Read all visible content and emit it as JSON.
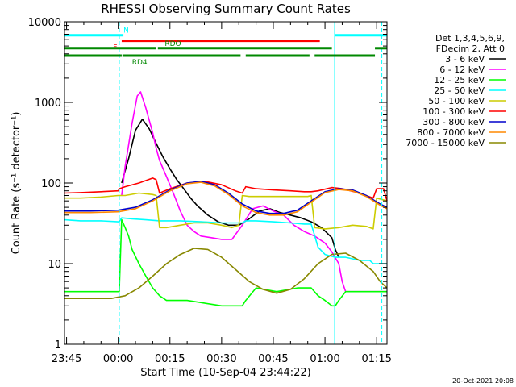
{
  "chart_data": {
    "type": "line",
    "title": "RHESSI Observing Summary Count Rates",
    "xlabel": "Start Time (10-Sep-04 23:44:22)",
    "ylabel": "Count Rate (s⁻¹ detector⁻¹)",
    "yscale": "log",
    "ylim": [
      1,
      10000
    ],
    "xlim_minutes": [
      -15.6,
      78.0
    ],
    "x_ticks": [
      {
        "m": -15,
        "label": "23:45"
      },
      {
        "m": 0,
        "label": "00:00"
      },
      {
        "m": 15,
        "label": "00:15"
      },
      {
        "m": 30,
        "label": "00:30"
      },
      {
        "m": 45,
        "label": "00:45"
      },
      {
        "m": 60,
        "label": "01:00"
      },
      {
        "m": 75,
        "label": "01:15"
      }
    ],
    "y_ticks": [
      {
        "v": 1,
        "label": "1"
      },
      {
        "v": 10,
        "label": "10"
      },
      {
        "v": 100,
        "label": "100"
      },
      {
        "v": 1000,
        "label": "1000"
      },
      {
        "v": 10000,
        "label": "10000"
      }
    ],
    "legend_header": [
      "Det 1,3,4,5,6,9,",
      "FDecim 2, Att 0"
    ],
    "series": [
      {
        "name": "3 - 6 keV",
        "color": "#000000",
        "x": [
          -15.6,
          -11,
          -5,
          0.3,
          1,
          3,
          5,
          7,
          9,
          11,
          13,
          15,
          17,
          19,
          21,
          23,
          26,
          29,
          32,
          35,
          38,
          41,
          44,
          47,
          50,
          53,
          56,
          59,
          62,
          63,
          64
        ],
        "y": [
          null,
          null,
          null,
          null,
          100,
          200,
          450,
          620,
          470,
          310,
          210,
          150,
          110,
          85,
          65,
          52,
          40,
          33,
          30,
          30,
          36,
          45,
          48,
          43,
          40,
          37,
          33,
          28,
          21,
          15,
          12
        ]
      },
      {
        "name": "6 - 12 keV",
        "color": "#ff00ff",
        "x": [
          -15.6,
          -11,
          -5,
          0.3,
          1,
          2,
          4,
          5.5,
          6.5,
          8,
          10,
          11,
          12,
          14,
          16,
          18,
          20,
          22,
          24,
          27,
          30,
          33,
          36,
          39,
          42,
          45,
          48,
          51,
          54,
          57,
          60,
          62,
          64,
          65,
          66,
          78
        ],
        "y": [
          null,
          null,
          null,
          null,
          70,
          160,
          550,
          1200,
          1350,
          850,
          420,
          270,
          190,
          120,
          75,
          45,
          30,
          25,
          22,
          21,
          20,
          20,
          30,
          48,
          52,
          45,
          40,
          30,
          25,
          22,
          18,
          14,
          10,
          6,
          4.5,
          4.5
        ]
      },
      {
        "name": "12 - 25 keV",
        "color": "#00ff00",
        "x": [
          -15.6,
          -11,
          -5,
          -1,
          0.3,
          1,
          2,
          3,
          4,
          6,
          8,
          10,
          12,
          14,
          20,
          30,
          35,
          36,
          37,
          40,
          46,
          52,
          56,
          58,
          60,
          62,
          63,
          64,
          66,
          70,
          75,
          78
        ],
        "y": [
          4.5,
          4.5,
          4.5,
          4.5,
          4.5,
          35,
          28,
          22,
          15,
          10,
          7,
          5,
          4,
          3.5,
          3.5,
          3,
          3,
          3,
          3.5,
          5,
          4.5,
          5,
          5,
          4,
          3.5,
          3,
          3,
          3.5,
          4.5,
          4.5,
          4.5,
          4.5
        ]
      },
      {
        "name": "25 - 50 keV",
        "color": "#00ffff",
        "x": [
          -15.6,
          -11,
          -5,
          0,
          0.3,
          1,
          4,
          8,
          12,
          18,
          24,
          30,
          35,
          36,
          37,
          40,
          45,
          50,
          54,
          56,
          58,
          60,
          63,
          66,
          70,
          73,
          74,
          76,
          78
        ],
        "y": [
          35,
          34,
          34,
          33,
          33,
          37,
          36,
          35,
          34,
          34,
          33,
          32,
          32,
          32,
          34,
          34,
          33,
          32,
          31,
          31,
          16,
          13,
          12,
          12,
          11,
          11,
          10,
          10,
          10
        ]
      },
      {
        "name": "50 - 100 keV",
        "color": "#cccc00",
        "x": [
          -15.6,
          -11,
          -5,
          0,
          0.3,
          2,
          6,
          10,
          11,
          12,
          14,
          18,
          22,
          26,
          30,
          33,
          35,
          36,
          38,
          42,
          46,
          50,
          53,
          55,
          56,
          57,
          60,
          64,
          68,
          72,
          74,
          75,
          78
        ],
        "y": [
          65,
          65,
          67,
          70,
          70,
          70,
          75,
          72,
          70,
          28,
          28,
          30,
          32,
          32,
          30,
          28,
          30,
          70,
          68,
          68,
          68,
          68,
          68,
          68,
          70,
          28,
          27,
          28,
          30,
          29,
          27,
          65,
          60
        ]
      },
      {
        "name": "100 - 300 keV",
        "color": "#ff0000",
        "x": [
          -15.6,
          -11,
          -5,
          0,
          0.3,
          2,
          6,
          10,
          11,
          12,
          15,
          20,
          25,
          30,
          34,
          36,
          37,
          40,
          45,
          50,
          54,
          56,
          58,
          62,
          65,
          70,
          74,
          75,
          77,
          78
        ],
        "y": [
          75,
          76,
          78,
          80,
          85,
          90,
          100,
          115,
          110,
          75,
          85,
          100,
          105,
          95,
          80,
          75,
          90,
          85,
          82,
          80,
          78,
          78,
          80,
          88,
          85,
          75,
          65,
          85,
          85,
          60
        ]
      },
      {
        "name": "300 - 800 keV",
        "color": "#0000cc",
        "x": [
          -15.6,
          -8,
          0,
          5,
          10,
          15,
          20,
          24,
          28,
          32,
          36,
          40,
          44,
          48,
          52,
          56,
          60,
          64,
          68,
          72,
          76,
          78
        ],
        "y": [
          45,
          45,
          46,
          50,
          62,
          82,
          100,
          105,
          95,
          75,
          55,
          45,
          42,
          42,
          46,
          60,
          78,
          85,
          82,
          70,
          55,
          50
        ]
      },
      {
        "name": "800 - 7000 keV",
        "color": "#ff8800",
        "x": [
          -15.6,
          -8,
          0,
          5,
          10,
          15,
          20,
          24,
          28,
          32,
          36,
          40,
          44,
          48,
          52,
          56,
          60,
          64,
          68,
          72,
          76,
          78
        ],
        "y": [
          43,
          43,
          44,
          48,
          60,
          80,
          98,
          102,
          92,
          72,
          52,
          43,
          40,
          40,
          44,
          58,
          76,
          83,
          80,
          68,
          53,
          48
        ]
      },
      {
        "name": "7000 - 15000 keV",
        "color": "#888800",
        "x": [
          -15.6,
          -8,
          -2,
          2,
          6,
          10,
          14,
          18,
          22,
          26,
          30,
          34,
          38,
          42,
          46,
          50,
          54,
          58,
          62,
          66,
          70,
          74,
          76,
          78
        ],
        "y": [
          3.7,
          3.7,
          3.7,
          4,
          5,
          7,
          10,
          13,
          15.5,
          15,
          12,
          8.5,
          6,
          4.8,
          4.3,
          4.8,
          6.5,
          10,
          13,
          13.5,
          11,
          8,
          6,
          5
        ]
      }
    ],
    "flags": [
      {
        "label": "N",
        "color": "#00ffff",
        "segments": [
          [
            -15.6,
            0.3
          ],
          [
            0.3,
            1.5
          ],
          [
            62.8,
            78
          ]
        ],
        "label_at": 1.5,
        "label_above": true,
        "value": 6800
      },
      {
        "label": "F",
        "color": "#ff0000",
        "segments": [
          [
            1.0,
            58.5
          ]
        ],
        "label_at": -1.5,
        "label_above": false,
        "value": 5800
      },
      {
        "label": "RDO",
        "color": "#008800",
        "segments": [
          [
            -15.6,
            11.0
          ],
          [
            11.5,
            62.0
          ],
          [
            74.5,
            78
          ]
        ],
        "label_at": 13.5,
        "label_above": true,
        "value": 4700
      },
      {
        "label": "RD4",
        "color": "#008800",
        "segments": [
          [
            -15.6,
            1.0
          ],
          [
            1.2,
            35.5
          ],
          [
            37.0,
            55.5
          ],
          [
            57.0,
            74.5
          ]
        ],
        "label_at": 4.0,
        "label_above": false,
        "value": 3800
      }
    ],
    "vlines": [
      {
        "x": -15.6,
        "color": "#00ffff",
        "style": "solid"
      },
      {
        "x": 0.3,
        "color": "#00ffff",
        "style": "dashed"
      },
      {
        "x": 62.8,
        "color": "#00ffff",
        "style": "solid"
      },
      {
        "x": 76.5,
        "color": "#00ffff",
        "style": "dashed"
      }
    ]
  },
  "footer": {
    "date_stamp": "20-Oct-2021 20:08"
  }
}
